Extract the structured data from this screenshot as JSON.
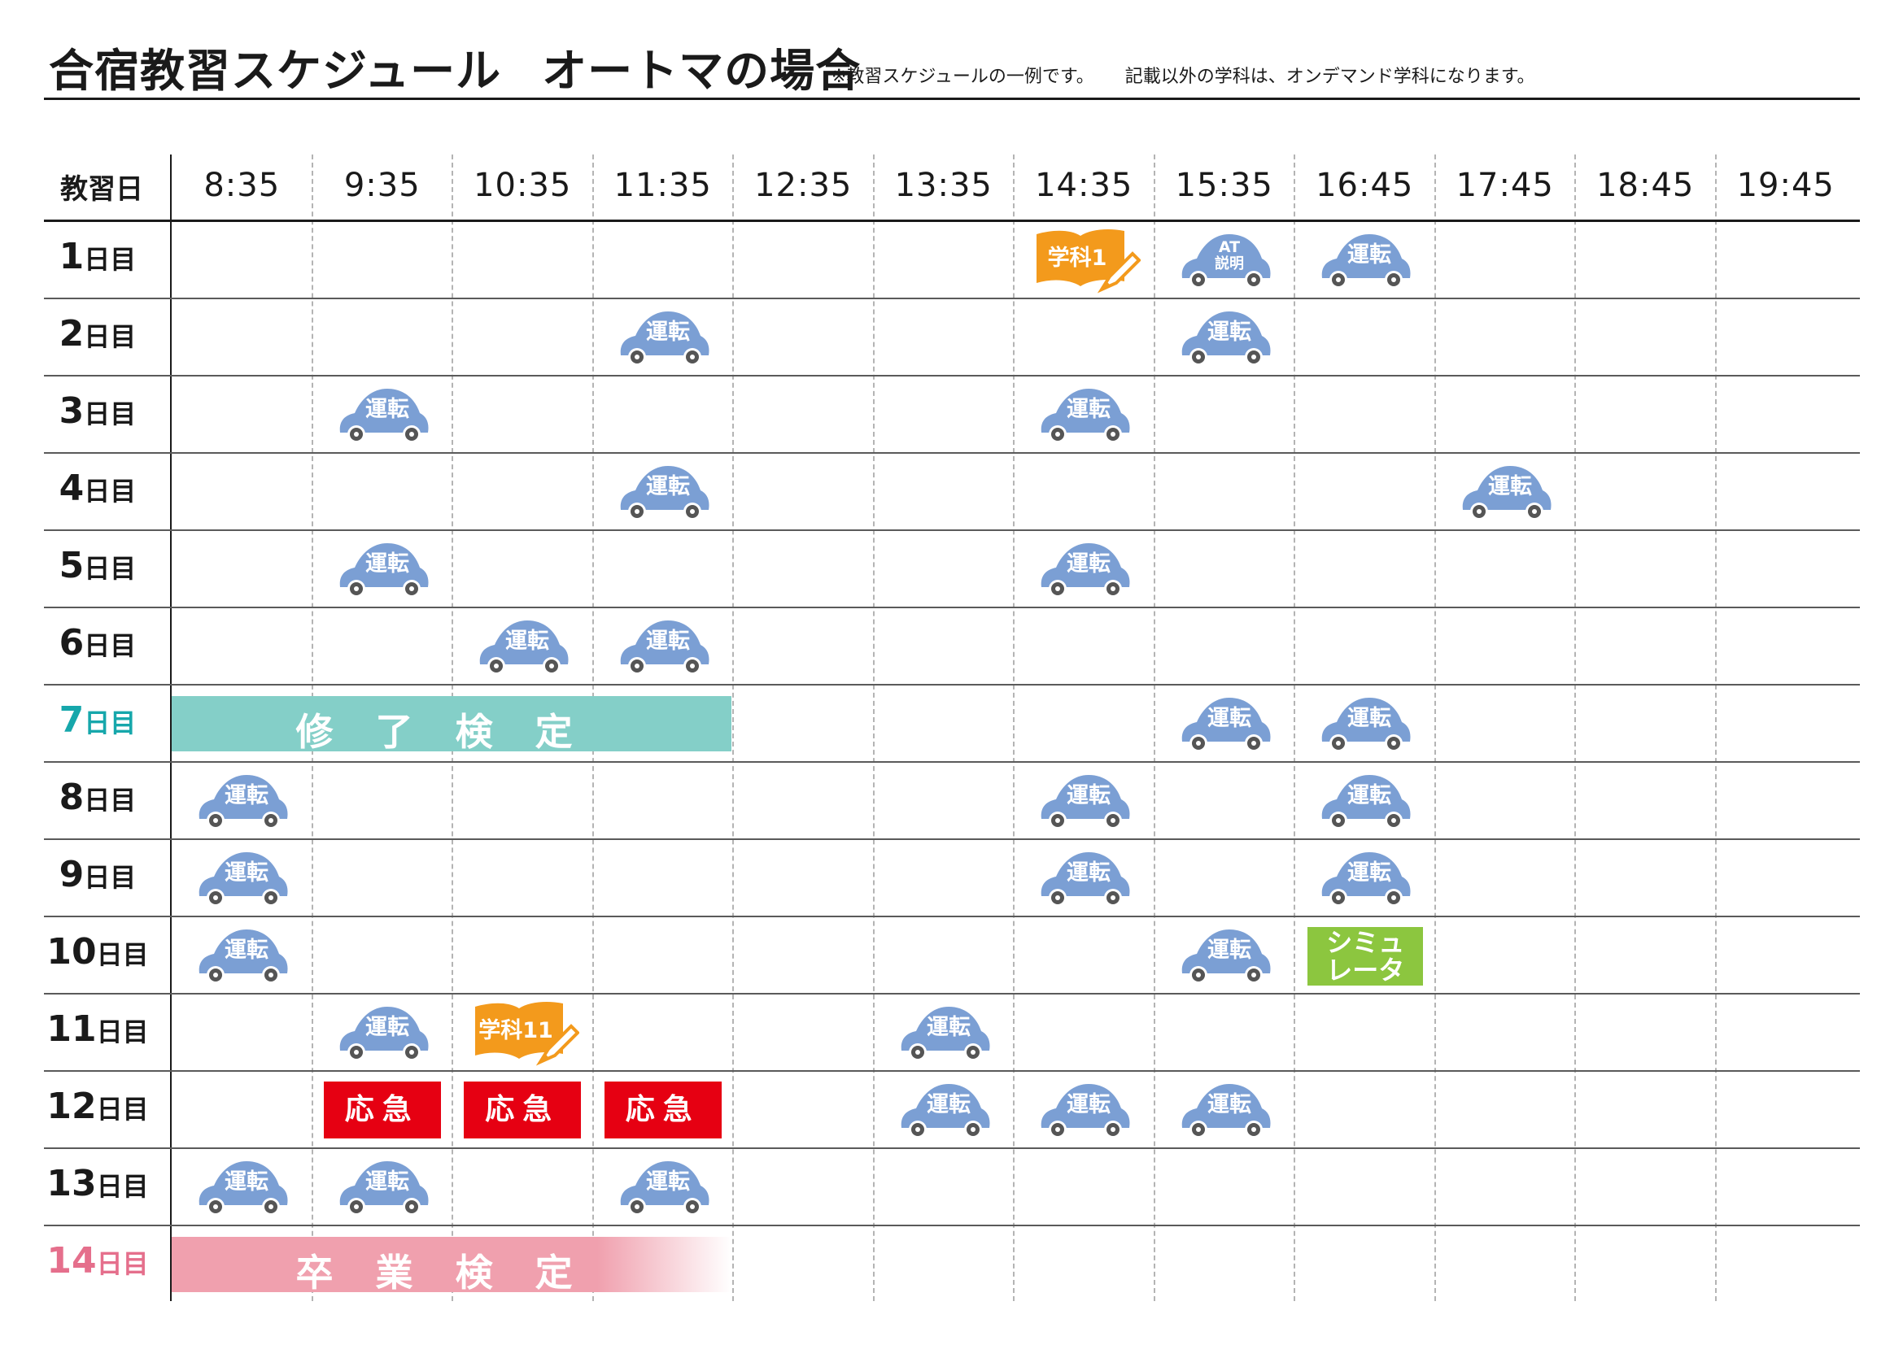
{
  "header": {
    "title_main": "合宿教習スケジュール",
    "title_sub": "オートマの場合",
    "note_1": "※教習スケジュールの一例です。",
    "note_2": "記載以外の学科は、オンデマンド学科になります。"
  },
  "table": {
    "corner_label": "教習日",
    "columns": [
      "8:35",
      "9:35",
      "10:35",
      "11:35",
      "12:35",
      "13:35",
      "14:35",
      "15:35",
      "16:45",
      "17:45",
      "18:45",
      "19:45"
    ],
    "days": [
      {
        "num": "1",
        "suffix": "日目",
        "color": "default"
      },
      {
        "num": "2",
        "suffix": "日目",
        "color": "default"
      },
      {
        "num": "3",
        "suffix": "日目",
        "color": "default"
      },
      {
        "num": "4",
        "suffix": "日目",
        "color": "default"
      },
      {
        "num": "5",
        "suffix": "日目",
        "color": "default"
      },
      {
        "num": "6",
        "suffix": "日目",
        "color": "default"
      },
      {
        "num": "7",
        "suffix": "日目",
        "color": "teal"
      },
      {
        "num": "8",
        "suffix": "日目",
        "color": "default"
      },
      {
        "num": "9",
        "suffix": "日目",
        "color": "default"
      },
      {
        "num": "10",
        "suffix": "日目",
        "color": "default"
      },
      {
        "num": "11",
        "suffix": "日目",
        "color": "default"
      },
      {
        "num": "12",
        "suffix": "日目",
        "color": "default"
      },
      {
        "num": "13",
        "suffix": "日目",
        "color": "default"
      },
      {
        "num": "14",
        "suffix": "日目",
        "color": "pink"
      }
    ]
  },
  "labels": {
    "driving": "運転",
    "at_line1": "AT",
    "at_line2": "説明",
    "lecture_1": "学科1",
    "lecture_11": "学科11",
    "sim_line1": "シミュ",
    "sim_line2": "レータ",
    "emergency": "応急",
    "shuryo_chars": [
      "修",
      "了",
      "検",
      "定"
    ],
    "sotsugyo_chars": [
      "卒",
      "業",
      "検",
      "定"
    ]
  },
  "colors": {
    "car": "#7b9fd4",
    "lecture": "#f39a1c",
    "simulator": "#8cc63f",
    "emergency": "#e60012",
    "teal_band": "#84cfc8",
    "pink_band": "#f0a0ae",
    "teal_text": "#16a7ab",
    "pink_text": "#e56f8c"
  },
  "schedule": [
    {
      "day": 1,
      "col": 6,
      "type": "lecture",
      "text_key": "lecture_1"
    },
    {
      "day": 1,
      "col": 7,
      "type": "car-at"
    },
    {
      "day": 1,
      "col": 8,
      "type": "car"
    },
    {
      "day": 2,
      "col": 3,
      "type": "car"
    },
    {
      "day": 2,
      "col": 7,
      "type": "car"
    },
    {
      "day": 3,
      "col": 1,
      "type": "car"
    },
    {
      "day": 3,
      "col": 6,
      "type": "car"
    },
    {
      "day": 4,
      "col": 3,
      "type": "car"
    },
    {
      "day": 4,
      "col": 9,
      "type": "car"
    },
    {
      "day": 5,
      "col": 1,
      "type": "car"
    },
    {
      "day": 5,
      "col": 6,
      "type": "car"
    },
    {
      "day": 6,
      "col": 2,
      "type": "car"
    },
    {
      "day": 6,
      "col": 3,
      "type": "car"
    },
    {
      "day": 7,
      "type": "band-teal",
      "start": 0,
      "end": 4,
      "chars_key": "shuryo_chars"
    },
    {
      "day": 7,
      "col": 7,
      "type": "car"
    },
    {
      "day": 7,
      "col": 8,
      "type": "car"
    },
    {
      "day": 8,
      "col": 0,
      "type": "car"
    },
    {
      "day": 8,
      "col": 6,
      "type": "car"
    },
    {
      "day": 8,
      "col": 8,
      "type": "car"
    },
    {
      "day": 9,
      "col": 0,
      "type": "car"
    },
    {
      "day": 9,
      "col": 6,
      "type": "car"
    },
    {
      "day": 9,
      "col": 8,
      "type": "car"
    },
    {
      "day": 10,
      "col": 0,
      "type": "car"
    },
    {
      "day": 10,
      "col": 7,
      "type": "car"
    },
    {
      "day": 10,
      "col": 8,
      "type": "sim"
    },
    {
      "day": 11,
      "col": 1,
      "type": "car"
    },
    {
      "day": 11,
      "col": 2,
      "type": "lecture",
      "text_key": "lecture_11"
    },
    {
      "day": 11,
      "col": 5,
      "type": "car"
    },
    {
      "day": 12,
      "col": 1,
      "type": "emergency"
    },
    {
      "day": 12,
      "col": 2,
      "type": "emergency"
    },
    {
      "day": 12,
      "col": 3,
      "type": "emergency"
    },
    {
      "day": 12,
      "col": 5,
      "type": "car"
    },
    {
      "day": 12,
      "col": 6,
      "type": "car"
    },
    {
      "day": 12,
      "col": 7,
      "type": "car"
    },
    {
      "day": 13,
      "col": 0,
      "type": "car"
    },
    {
      "day": 13,
      "col": 1,
      "type": "car"
    },
    {
      "day": 13,
      "col": 3,
      "type": "car"
    },
    {
      "day": 14,
      "type": "band-pink",
      "start": 0,
      "end": 4,
      "chars_key": "sotsugyo_chars"
    }
  ]
}
